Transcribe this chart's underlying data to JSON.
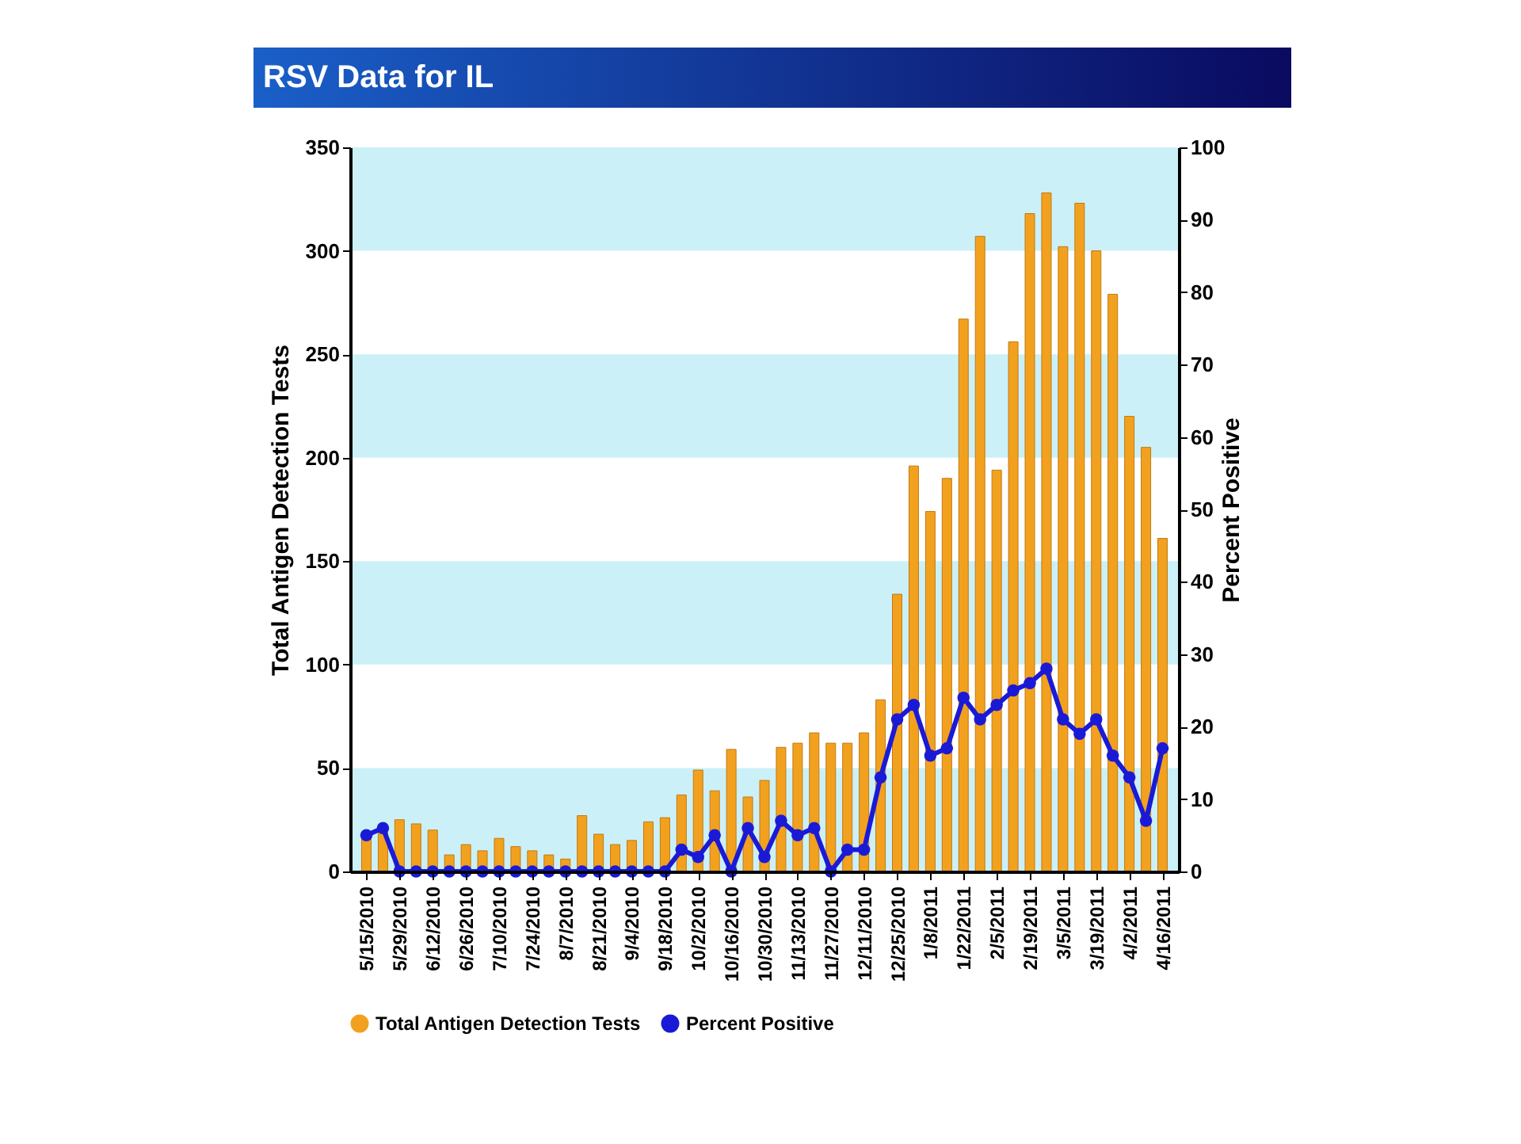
{
  "chart_data": {
    "type": "bar",
    "title": "RSV Data for IL",
    "ylabel": "Total Antigen Detection Tests",
    "y2label": "Percent Positive",
    "categories": [
      "5/15/2010",
      null,
      "5/29/2010",
      null,
      "6/12/2010",
      null,
      "6/26/2010",
      null,
      "7/10/2010",
      null,
      "7/24/2010",
      null,
      "8/7/2010",
      null,
      "8/21/2010",
      null,
      "9/4/2010",
      null,
      "9/18/2010",
      null,
      "10/2/2010",
      null,
      "10/16/2010",
      null,
      "10/30/2010",
      null,
      "11/13/2010",
      null,
      "11/27/2010",
      null,
      "12/11/2010",
      null,
      "12/25/2010",
      null,
      "1/8/2011",
      null,
      "1/22/2011",
      null,
      "2/5/2011",
      null,
      "2/19/2011",
      null,
      "3/5/2011",
      null,
      "3/19/2011",
      null,
      "4/2/2011",
      null,
      "4/16/2011"
    ],
    "series": [
      {
        "name": "Total Antigen Detection Tests",
        "color": "#f2a11f",
        "values": [
          18,
          22,
          25,
          23,
          20,
          8,
          13,
          10,
          16,
          12,
          10,
          8,
          6,
          27,
          18,
          13,
          15,
          24,
          26,
          37,
          49,
          39,
          59,
          36,
          44,
          60,
          62,
          67,
          62,
          62,
          67,
          83,
          134,
          196,
          174,
          190,
          267,
          307,
          194,
          256,
          318,
          328,
          302,
          323,
          300,
          279,
          220,
          205,
          161
        ]
      },
      {
        "name": "Percent Positive",
        "type": "line",
        "axis": "y2",
        "color": "#1a1ad6",
        "marker": "circle",
        "values": [
          5,
          6,
          0,
          0,
          0,
          0,
          0,
          0,
          0,
          0,
          0,
          0,
          0,
          0,
          0,
          0,
          0,
          0,
          0,
          3,
          2,
          5,
          0,
          6,
          2,
          7,
          5,
          6,
          0,
          3,
          3,
          13,
          21,
          23,
          16,
          17,
          24,
          21,
          23,
          25,
          26,
          28,
          21,
          19,
          21,
          16,
          13,
          7,
          17
        ]
      }
    ],
    "ylim": [
      0,
      350
    ],
    "yticks": [
      0,
      50,
      100,
      150,
      200,
      250,
      300,
      350
    ],
    "y2lim": [
      0,
      100
    ],
    "y2ticks": [
      0,
      10,
      20,
      30,
      40,
      50,
      60,
      70,
      80,
      90,
      100
    ],
    "bands": [
      {
        "axis": "y",
        "from": 0,
        "to": 50,
        "color": "#ccf0f8"
      },
      {
        "axis": "y",
        "from": 100,
        "to": 150,
        "color": "#ccf0f8"
      },
      {
        "axis": "y",
        "from": 200,
        "to": 250,
        "color": "#ccf0f8"
      },
      {
        "axis": "y",
        "from": 300,
        "to": 350,
        "color": "#ccf0f8"
      }
    ],
    "grid": false,
    "legend": "bottom"
  }
}
